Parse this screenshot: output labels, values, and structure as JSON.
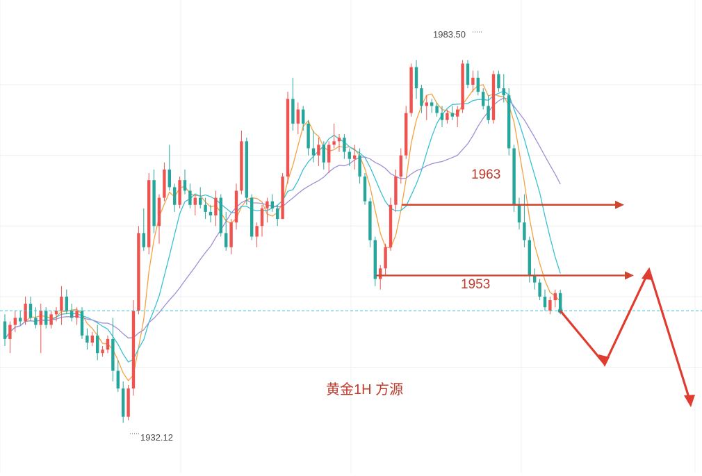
{
  "chart_data": {
    "type": "candlestick",
    "title": "黄金1H 方源",
    "ylim": [
      1925,
      1992
    ],
    "grid": true,
    "price_scale_labels": {
      "high_label": "1983.50",
      "low_label": "1932.12"
    },
    "annotations": {
      "level_1963": {
        "label": "1963",
        "value": 1963
      },
      "level_1953": {
        "label": "1953",
        "value": 1953
      },
      "current_price": 1948
    },
    "colors": {
      "up": "#ef5350",
      "down": "#26a69a",
      "annotation": "#d0452e",
      "ma_orange": "#f5a142",
      "ma_cyan": "#38c0d3",
      "ma_purple": "#9f8fd6",
      "grid": "#eef0f3"
    },
    "candles": [
      [
        1946.5,
        1947.5,
        1943.0,
        1944.0
      ],
      [
        1944.0,
        1946.5,
        1942.0,
        1946.0
      ],
      [
        1946.0,
        1948.0,
        1945.0,
        1947.0
      ],
      [
        1947.0,
        1948.0,
        1946.0,
        1946.5
      ],
      [
        1946.5,
        1950.0,
        1946.0,
        1949.0
      ],
      [
        1949.0,
        1950.0,
        1946.5,
        1947.0
      ],
      [
        1947.0,
        1948.5,
        1945.5,
        1946.0
      ],
      [
        1946.0,
        1949.0,
        1942.0,
        1948.0
      ],
      [
        1948.0,
        1948.5,
        1945.5,
        1946.0
      ],
      [
        1946.0,
        1948.0,
        1945.5,
        1947.5
      ],
      [
        1947.5,
        1948.5,
        1946.5,
        1948.0
      ],
      [
        1948.0,
        1951.5,
        1946.0,
        1950.0
      ],
      [
        1950.0,
        1951.0,
        1947.5,
        1948.0
      ],
      [
        1948.0,
        1949.0,
        1946.5,
        1947.0
      ],
      [
        1947.0,
        1948.5,
        1946.0,
        1948.0
      ],
      [
        1948.0,
        1948.5,
        1944.0,
        1944.5
      ],
      [
        1944.5,
        1945.5,
        1942.5,
        1943.5
      ],
      [
        1943.5,
        1945.0,
        1943.0,
        1944.5
      ],
      [
        1944.5,
        1946.0,
        1941.0,
        1942.0
      ],
      [
        1942.0,
        1943.0,
        1941.5,
        1942.5
      ],
      [
        1942.5,
        1944.5,
        1942.0,
        1944.0
      ],
      [
        1944.0,
        1947.0,
        1938.0,
        1939.5
      ],
      [
        1939.5,
        1941.0,
        1936.5,
        1937.0
      ],
      [
        1937.0,
        1938.0,
        1932.12,
        1933.0
      ],
      [
        1933.0,
        1937.5,
        1932.5,
        1937.0
      ],
      [
        1937.0,
        1949.5,
        1936.0,
        1948.0
      ],
      [
        1948.0,
        1960.0,
        1947.5,
        1959.0
      ],
      [
        1959.0,
        1962.5,
        1956.5,
        1957.0
      ],
      [
        1957.0,
        1967.5,
        1956.0,
        1966.5
      ],
      [
        1966.5,
        1968.0,
        1959.0,
        1960.0
      ],
      [
        1960.0,
        1964.5,
        1957.5,
        1964.0
      ],
      [
        1964.0,
        1969.0,
        1963.5,
        1968.0
      ],
      [
        1968.0,
        1971.5,
        1965.0,
        1965.5
      ],
      [
        1965.5,
        1966.0,
        1962.0,
        1963.0
      ],
      [
        1963.0,
        1967.0,
        1962.5,
        1966.5
      ],
      [
        1966.5,
        1968.0,
        1964.5,
        1965.0
      ],
      [
        1965.0,
        1966.0,
        1962.5,
        1963.0
      ],
      [
        1963.0,
        1964.5,
        1961.5,
        1964.0
      ],
      [
        1964.0,
        1965.5,
        1962.5,
        1963.0
      ],
      [
        1963.0,
        1964.0,
        1961.0,
        1962.0
      ],
      [
        1962.0,
        1963.0,
        1960.5,
        1961.5
      ],
      [
        1961.5,
        1965.0,
        1960.0,
        1964.0
      ],
      [
        1964.0,
        1964.5,
        1958.5,
        1959.0
      ],
      [
        1959.0,
        1962.0,
        1956.5,
        1957.0
      ],
      [
        1957.0,
        1961.0,
        1956.0,
        1960.5
      ],
      [
        1960.5,
        1966.0,
        1959.5,
        1965.0
      ],
      [
        1965.0,
        1973.5,
        1964.5,
        1972.0
      ],
      [
        1972.0,
        1972.5,
        1963.0,
        1964.0
      ],
      [
        1964.0,
        1964.5,
        1958.0,
        1958.5
      ],
      [
        1958.5,
        1960.5,
        1957.0,
        1960.0
      ],
      [
        1960.0,
        1963.0,
        1958.5,
        1962.5
      ],
      [
        1962.5,
        1964.0,
        1960.5,
        1963.5
      ],
      [
        1963.5,
        1964.5,
        1962.0,
        1962.5
      ],
      [
        1962.5,
        1963.0,
        1960.0,
        1961.0
      ],
      [
        1961.0,
        1967.5,
        1961.0,
        1967.0
      ],
      [
        1967.0,
        1979.0,
        1966.0,
        1978.0
      ],
      [
        1978.0,
        1981.0,
        1973.5,
        1974.5
      ],
      [
        1974.5,
        1977.5,
        1973.0,
        1976.5
      ],
      [
        1976.5,
        1977.0,
        1973.5,
        1974.5
      ],
      [
        1974.5,
        1975.0,
        1970.0,
        1971.0
      ],
      [
        1971.0,
        1973.5,
        1969.0,
        1970.0
      ],
      [
        1970.0,
        1972.5,
        1968.5,
        1971.5
      ],
      [
        1971.5,
        1972.0,
        1968.0,
        1969.0
      ],
      [
        1969.0,
        1972.0,
        1967.5,
        1971.5
      ],
      [
        1971.5,
        1974.5,
        1971.0,
        1972.0
      ],
      [
        1972.0,
        1973.0,
        1970.5,
        1972.5
      ],
      [
        1972.5,
        1973.0,
        1969.5,
        1970.5
      ],
      [
        1970.5,
        1971.0,
        1968.5,
        1969.5
      ],
      [
        1969.5,
        1971.5,
        1968.0,
        1970.0
      ],
      [
        1970.0,
        1971.0,
        1966.0,
        1967.0
      ],
      [
        1967.0,
        1967.5,
        1963.0,
        1963.5
      ],
      [
        1963.5,
        1964.0,
        1957.0,
        1958.0
      ],
      [
        1958.0,
        1958.5,
        1951.5,
        1952.5
      ],
      [
        1952.5,
        1954.5,
        1951.0,
        1954.0
      ],
      [
        1954.0,
        1957.5,
        1953.0,
        1957.0
      ],
      [
        1957.0,
        1964.0,
        1956.5,
        1963.0
      ],
      [
        1963.0,
        1968.0,
        1962.0,
        1967.0
      ],
      [
        1967.0,
        1971.0,
        1966.0,
        1970.0
      ],
      [
        1970.0,
        1977.0,
        1969.5,
        1976.0
      ],
      [
        1976.0,
        1983.0,
        1975.5,
        1982.5
      ],
      [
        1982.5,
        1983.5,
        1978.0,
        1979.5
      ],
      [
        1979.5,
        1980.0,
        1976.0,
        1977.0
      ],
      [
        1977.0,
        1978.5,
        1975.0,
        1977.5
      ],
      [
        1977.5,
        1978.0,
        1976.0,
        1977.0
      ],
      [
        1977.0,
        1977.5,
        1975.5,
        1976.0
      ],
      [
        1976.0,
        1977.0,
        1974.0,
        1975.0
      ],
      [
        1975.0,
        1976.5,
        1974.5,
        1976.0
      ],
      [
        1976.0,
        1977.0,
        1975.0,
        1975.5
      ],
      [
        1975.5,
        1977.0,
        1974.0,
        1976.5
      ],
      [
        1976.5,
        1983.5,
        1976.0,
        1983.0
      ],
      [
        1983.0,
        1983.5,
        1979.5,
        1980.0
      ],
      [
        1980.0,
        1982.0,
        1979.0,
        1981.0
      ],
      [
        1981.0,
        1982.0,
        1978.5,
        1979.0
      ],
      [
        1979.0,
        1979.5,
        1976.5,
        1977.0
      ],
      [
        1977.0,
        1978.5,
        1974.5,
        1975.0
      ],
      [
        1975.0,
        1982.0,
        1974.5,
        1981.5
      ],
      [
        1981.5,
        1982.0,
        1979.0,
        1979.5
      ],
      [
        1979.5,
        1981.5,
        1977.5,
        1978.5
      ],
      [
        1978.5,
        1979.5,
        1970.0,
        1971.0
      ],
      [
        1971.0,
        1971.5,
        1962.0,
        1963.0
      ],
      [
        1963.0,
        1964.0,
        1959.5,
        1960.5
      ],
      [
        1960.5,
        1964.5,
        1957.0,
        1958.0
      ],
      [
        1958.0,
        1958.5,
        1952.0,
        1953.0
      ],
      [
        1953.0,
        1954.0,
        1951.0,
        1952.0
      ],
      [
        1952.0,
        1952.5,
        1949.5,
        1950.0
      ],
      [
        1950.0,
        1951.0,
        1948.0,
        1948.5
      ],
      [
        1948.0,
        1950.0,
        1947.5,
        1949.5
      ],
      [
        1949.5,
        1951.0,
        1948.5,
        1950.5
      ],
      [
        1950.5,
        1951.0,
        1947.5,
        1948.0
      ]
    ]
  }
}
